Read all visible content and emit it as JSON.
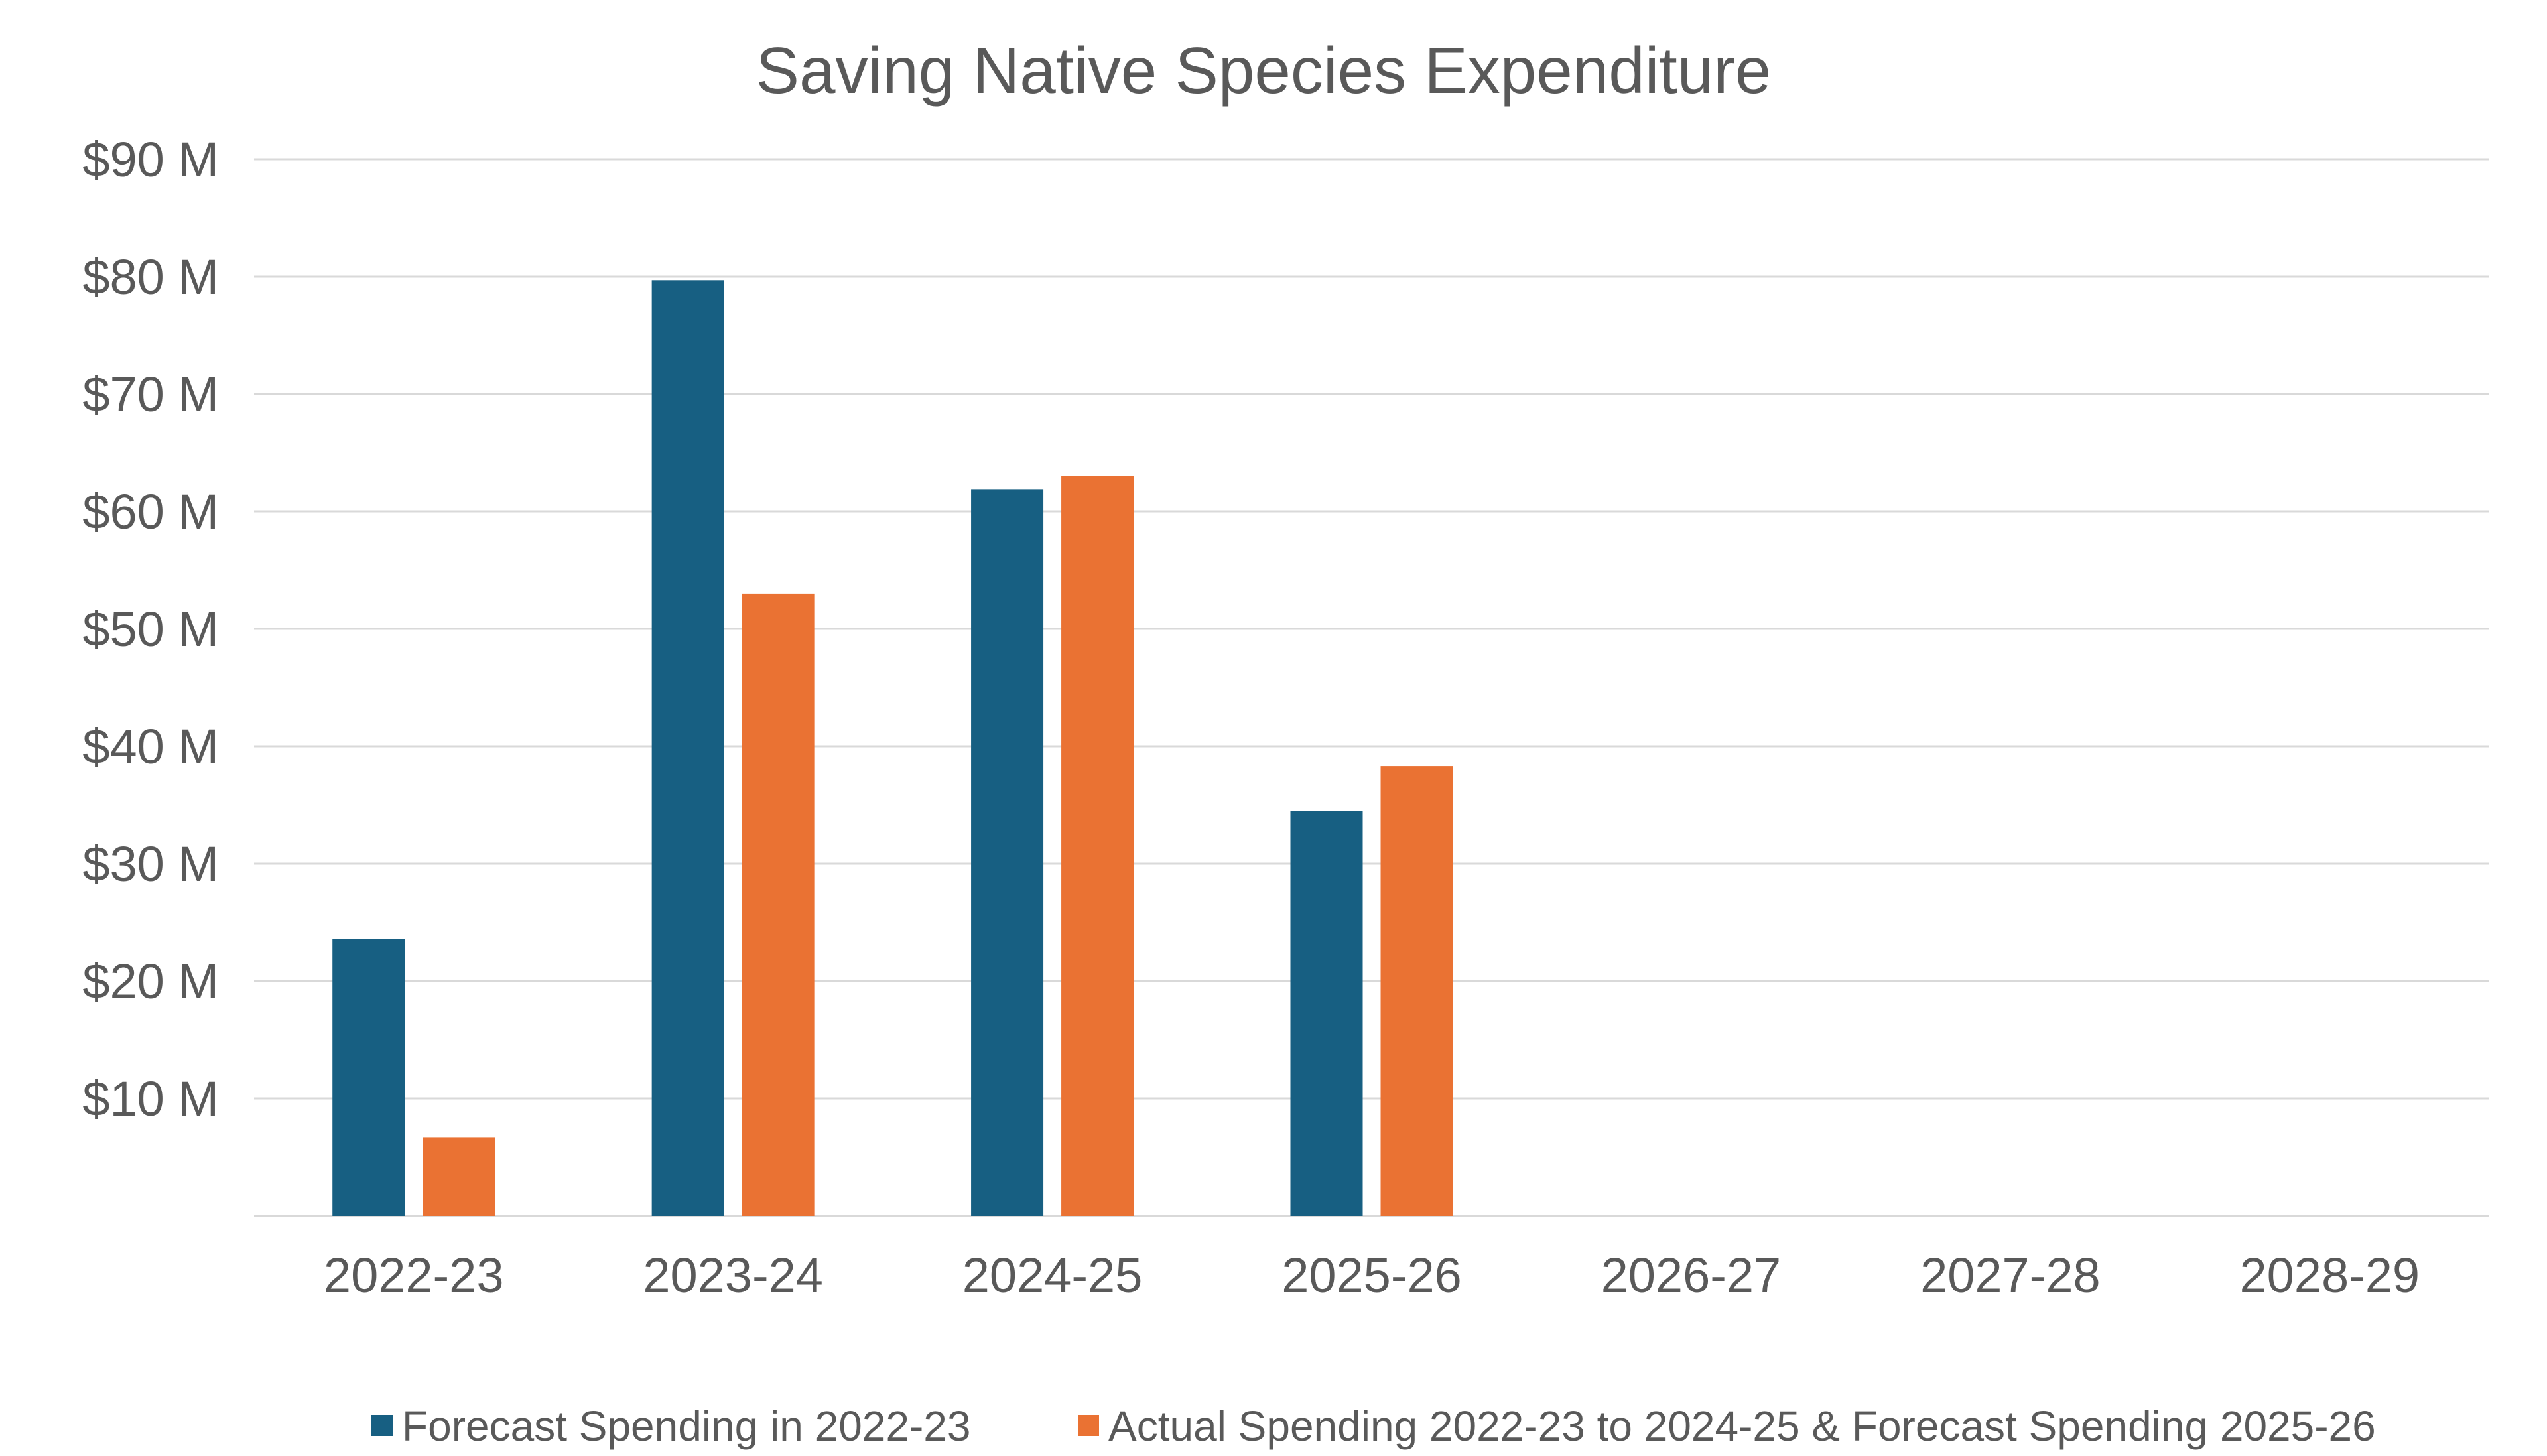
{
  "chart_data": {
    "type": "bar",
    "title": "Saving Native Species Expenditure",
    "xlabel": "",
    "ylabel": "",
    "ylim": [
      0,
      90
    ],
    "yticks": [
      10,
      20,
      30,
      40,
      50,
      60,
      70,
      80,
      90
    ],
    "ytick_labels": [
      "$10 M",
      "$20 M",
      "$30 M",
      "$40 M",
      "$50 M",
      "$60 M",
      "$70 M",
      "$80 M",
      "$90 M"
    ],
    "grid": true,
    "legend_position": "bottom",
    "categories": [
      "2022-23",
      "2023-24",
      "2024-25",
      "2025-26",
      "2026-27",
      "2027-28",
      "2028-29"
    ],
    "series": [
      {
        "name": "Forecast Spending in 2022-23",
        "color": "#175F82",
        "values": [
          23.6,
          79.7,
          61.9,
          34.5,
          null,
          null,
          null
        ]
      },
      {
        "name": "Actual Spending 2022-23 to 2024-25 & Forecast Spending 2025-26",
        "color": "#EA7233",
        "values": [
          6.7,
          53.0,
          63.0,
          38.3,
          null,
          null,
          null
        ]
      }
    ]
  }
}
